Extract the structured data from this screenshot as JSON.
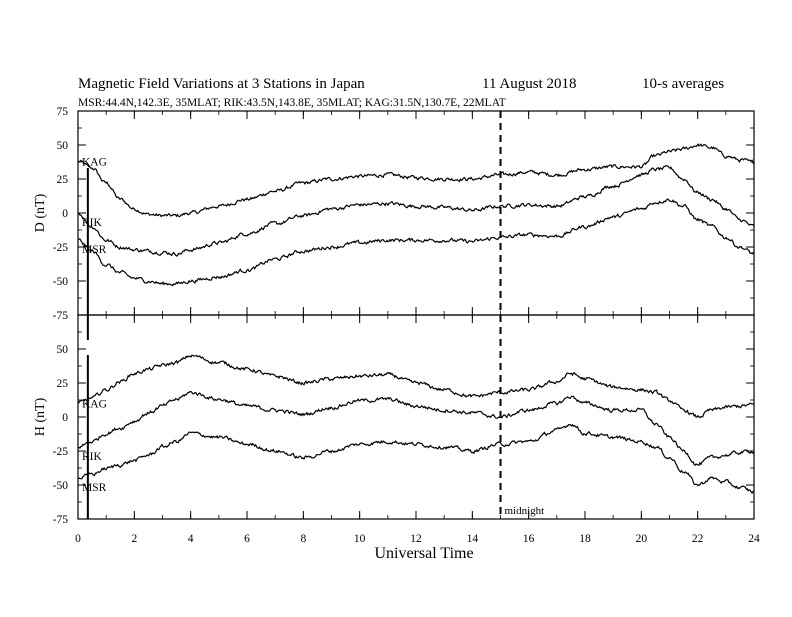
{
  "chart_data": {
    "type": "line",
    "title": "Magnetic Field Variations at 3 Stations in Japan",
    "date": "11  August  2018",
    "averaging": "10-s averages",
    "subtitle": "MSR:44.4N,142.3E, 35MLAT;  RIK:43.5N,143.8E, 35MLAT;  KAG:31.5N,130.7E, 22MLAT",
    "xlabel": "Universal Time",
    "xlim": [
      0,
      24
    ],
    "xticks": [
      0,
      2,
      4,
      6,
      8,
      10,
      12,
      14,
      16,
      18,
      20,
      22,
      24
    ],
    "annotations": [
      {
        "text": "midnight",
        "x": 15,
        "style": "dashed-vertical"
      },
      {
        "text": "",
        "x": 0.35,
        "style": "solid-vertical"
      }
    ],
    "panels": [
      {
        "ylabel": "D (nT)",
        "ylim": [
          -75,
          75
        ],
        "yticks": [
          75,
          50,
          25,
          0,
          -25,
          -50,
          -75
        ],
        "x": [
          0,
          0.5,
          1,
          1.5,
          2,
          2.5,
          3,
          3.5,
          4,
          5,
          6,
          7,
          8,
          9,
          10,
          11,
          12,
          13,
          14,
          15,
          16,
          17,
          18,
          19,
          20,
          20.5,
          21,
          21.5,
          22,
          22.5,
          23,
          23.5,
          24
        ],
        "series": [
          {
            "name": "KAG",
            "values": [
              38,
              33,
              22,
              10,
              3,
              -1,
              -2,
              -2,
              0,
              5,
              10,
              16,
              22,
              25,
              27,
              28,
              26,
              25,
              25,
              28,
              30,
              28,
              32,
              34,
              34,
              42,
              45,
              47,
              50,
              48,
              42,
              39,
              37
            ]
          },
          {
            "name": "RIK",
            "values": [
              0,
              -10,
              -20,
              -25,
              -27,
              -28,
              -29,
              -30,
              -27,
              -22,
              -15,
              -8,
              -2,
              3,
              6,
              7,
              5,
              4,
              2,
              5,
              6,
              5,
              12,
              20,
              28,
              32,
              33,
              25,
              15,
              10,
              3,
              -5,
              -10
            ]
          },
          {
            "name": "MSR",
            "values": [
              -20,
              -28,
              -38,
              -44,
              -48,
              -50,
              -52,
              -52,
              -50,
              -47,
              -42,
              -34,
              -28,
              -25,
              -22,
              -20,
              -20,
              -20,
              -21,
              -18,
              -16,
              -17,
              -10,
              -3,
              3,
              8,
              10,
              5,
              -5,
              -10,
              -18,
              -25,
              -30
            ]
          }
        ]
      },
      {
        "ylabel": "H (nT)",
        "ylim": [
          -75,
          75
        ],
        "yticks": [
          50,
          25,
          0,
          -25,
          -50,
          -75
        ],
        "x": [
          0,
          0.5,
          1,
          1.5,
          2,
          2.5,
          3,
          3.5,
          4,
          5,
          6,
          7,
          8,
          9,
          10,
          11,
          12,
          13,
          14,
          15,
          16,
          17,
          17.5,
          18,
          19,
          20,
          20.5,
          21,
          21.5,
          22,
          22.5,
          23,
          23.5,
          24
        ],
        "series": [
          {
            "name": "KAG",
            "values": [
              10,
              14,
              20,
              26,
              32,
              35,
              38,
              40,
              45,
              40,
              35,
              30,
              25,
              28,
              30,
              31,
              25,
              20,
              15,
              18,
              20,
              26,
              32,
              28,
              22,
              20,
              18,
              12,
              5,
              0,
              5,
              7,
              8,
              9
            ]
          },
          {
            "name": "RIK",
            "values": [
              -22,
              -18,
              -12,
              -8,
              -3,
              3,
              8,
              13,
              18,
              13,
              8,
              5,
              2,
              7,
              12,
              13,
              8,
              5,
              3,
              0,
              5,
              10,
              15,
              10,
              5,
              5,
              -5,
              -15,
              -25,
              -35,
              -30,
              -28,
              -26,
              -25
            ]
          },
          {
            "name": "MSR",
            "values": [
              -45,
              -42,
              -38,
              -35,
              -32,
              -28,
              -22,
              -18,
              -12,
              -15,
              -20,
              -25,
              -30,
              -25,
              -20,
              -18,
              -20,
              -22,
              -25,
              -20,
              -18,
              -10,
              -5,
              -12,
              -15,
              -18,
              -22,
              -30,
              -40,
              -50,
              -45,
              -48,
              -52,
              -55
            ]
          }
        ]
      }
    ]
  }
}
